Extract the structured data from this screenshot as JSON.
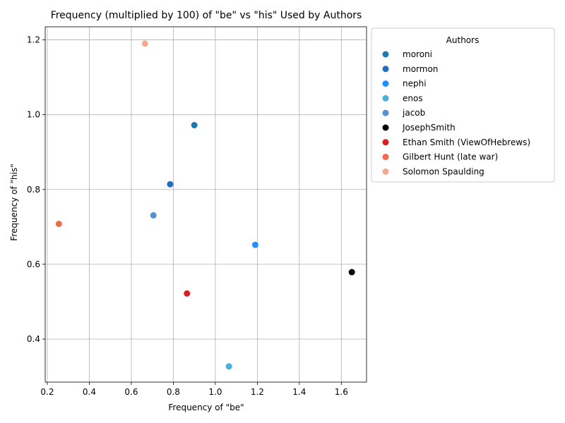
{
  "chart_data": {
    "type": "scatter",
    "title": "Frequency (multiplied by 100) of \"be\" vs \"his\" Used by Authors",
    "xlabel": "Frequency of \"be\"",
    "ylabel": "Frequency of \"his\"",
    "xlim": [
      0.19,
      1.72
    ],
    "ylim": [
      0.285,
      1.235
    ],
    "xticks": [
      0.2,
      0.4,
      0.6,
      0.8,
      1.0,
      1.2,
      1.4,
      1.6
    ],
    "yticks": [
      0.4,
      0.6,
      0.8,
      1.0,
      1.2
    ],
    "xtick_labels": [
      "0.2",
      "0.4",
      "0.6",
      "0.8",
      "1.0",
      "1.2",
      "1.4",
      "1.6"
    ],
    "ytick_labels": [
      "0.4",
      "0.6",
      "0.8",
      "1.0",
      "1.2"
    ],
    "grid": true,
    "legend_title": "Authors",
    "legend_position": "outside-right",
    "series": [
      {
        "name": "moroni",
        "color": "#1f77b4",
        "points": [
          {
            "x": 0.9,
            "y": 0.972
          }
        ]
      },
      {
        "name": "mormon",
        "color": "#1f6fbf",
        "points": [
          {
            "x": 0.785,
            "y": 0.814
          }
        ]
      },
      {
        "name": "nephi",
        "color": "#1e90ff",
        "points": [
          {
            "x": 1.19,
            "y": 0.652
          }
        ]
      },
      {
        "name": "enos",
        "color": "#4ab0d9",
        "points": [
          {
            "x": 1.065,
            "y": 0.327
          }
        ]
      },
      {
        "name": "jacob",
        "color": "#5590cf",
        "points": [
          {
            "x": 0.705,
            "y": 0.731
          }
        ]
      },
      {
        "name": "JosephSmith",
        "color": "#000000",
        "points": [
          {
            "x": 1.65,
            "y": 0.579
          }
        ]
      },
      {
        "name": "Ethan Smith (ViewOfHebrews)",
        "color": "#d62020",
        "points": [
          {
            "x": 0.865,
            "y": 0.522
          }
        ]
      },
      {
        "name": "Gilbert Hunt (late war)",
        "color": "#f26b4f",
        "points": [
          {
            "x": 0.255,
            "y": 0.708
          }
        ]
      },
      {
        "name": "Solomon Spaulding",
        "color": "#f5a98f",
        "points": [
          {
            "x": 0.665,
            "y": 1.19
          }
        ]
      }
    ]
  }
}
